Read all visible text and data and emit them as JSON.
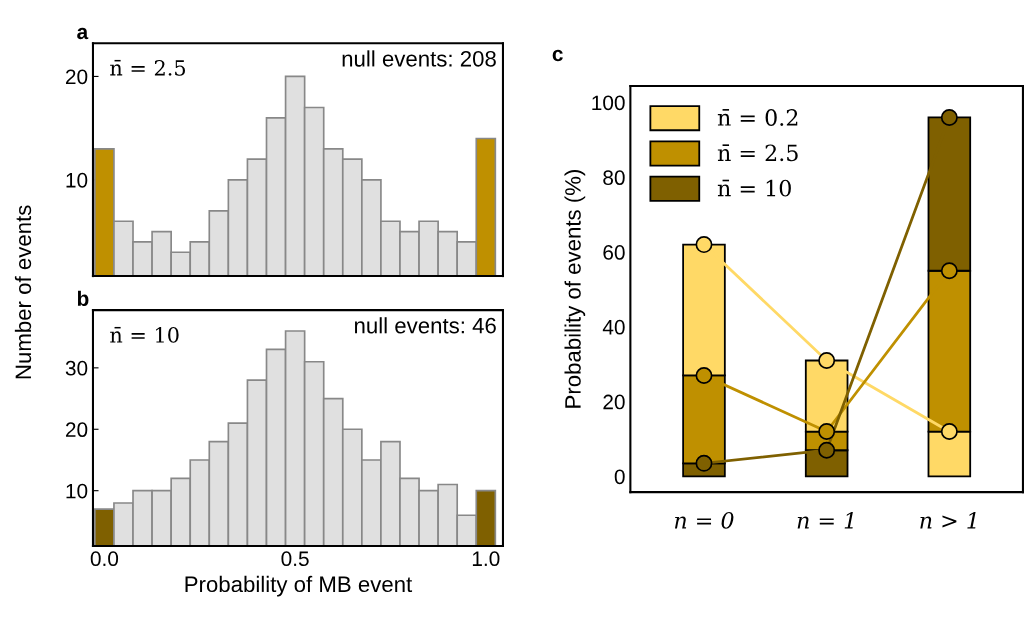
{
  "chart_data": [
    {
      "type": "histogram",
      "title": "a",
      "ylabel": "Number of events",
      "bins": [
        -0.025,
        0.025,
        0.075,
        0.125,
        0.175,
        0.225,
        0.275,
        0.325,
        0.375,
        0.425,
        0.475,
        0.525,
        0.575,
        0.625,
        0.675,
        0.725,
        0.775,
        0.825,
        0.875,
        0.925,
        0.975,
        1.025
      ],
      "values": [
        13,
        6,
        4,
        5,
        3,
        4,
        7,
        10,
        12,
        16,
        20,
        17,
        13,
        12,
        10,
        6,
        5,
        6,
        5,
        4,
        14
      ],
      "colors": [
        "#bf9000",
        "#e0e0e0",
        "#e0e0e0",
        "#e0e0e0",
        "#e0e0e0",
        "#e0e0e0",
        "#e0e0e0",
        "#e0e0e0",
        "#e0e0e0",
        "#e0e0e0",
        "#e0e0e0",
        "#e0e0e0",
        "#e0e0e0",
        "#e0e0e0",
        "#e0e0e0",
        "#e0e0e0",
        "#e0e0e0",
        "#e0e0e0",
        "#e0e0e0",
        "#e0e0e0",
        "#bf9000"
      ],
      "annotations": [
        "n̄ = 2.5",
        "null events: 208"
      ],
      "xlim": [
        -0.03,
        1.045
      ],
      "xticks": [
        {
          "value": 0,
          "label": null
        },
        {
          "value": 0.5,
          "label": null
        },
        {
          "value": 1,
          "label": null
        }
      ],
      "ylim": [
        0.7,
        23.2
      ],
      "yticks": [
        10,
        20
      ],
      "tick_labels": "y",
      "grid": false
    },
    {
      "type": "histogram",
      "title": "b",
      "xlabel": "Probability of MB event",
      "bins": [
        -0.025,
        0.025,
        0.075,
        0.125,
        0.175,
        0.225,
        0.275,
        0.325,
        0.375,
        0.425,
        0.475,
        0.525,
        0.575,
        0.625,
        0.675,
        0.725,
        0.775,
        0.825,
        0.875,
        0.925,
        0.975,
        1.025
      ],
      "values": [
        7,
        8,
        10,
        10,
        12,
        15,
        18,
        21,
        28,
        33,
        36,
        31,
        25,
        20,
        15,
        18,
        12,
        10,
        11,
        6,
        10
      ],
      "colors": [
        "#7f6000",
        "#e0e0e0",
        "#e0e0e0",
        "#e0e0e0",
        "#e0e0e0",
        "#e0e0e0",
        "#e0e0e0",
        "#e0e0e0",
        "#e0e0e0",
        "#e0e0e0",
        "#e0e0e0",
        "#e0e0e0",
        "#e0e0e0",
        "#e0e0e0",
        "#e0e0e0",
        "#e0e0e0",
        "#e0e0e0",
        "#e0e0e0",
        "#e0e0e0",
        "#e0e0e0",
        "#7f6000"
      ],
      "annotations": [
        "n̄ = 10",
        "null events: 46"
      ],
      "xlim": [
        -0.03,
        1.045
      ],
      "xticks": [
        {
          "value": 0,
          "label": "0.0"
        },
        {
          "value": 0.5,
          "label": "0.5"
        },
        {
          "value": 1,
          "label": "1.0"
        }
      ],
      "ylim": [
        1.0,
        39.4
      ],
      "yticks": [
        10,
        20,
        30
      ],
      "grid": false
    },
    {
      "type": "bar",
      "title": "c",
      "ylabel": "Probability of events (%)",
      "categories": [
        "n = 0",
        "n = 1",
        "n > 1"
      ],
      "series": [
        {
          "colors": [
            "#7f6000",
            "#7f6000",
            "#ffd966"
          ],
          "values": [
            3.5,
            7,
            12
          ]
        },
        {
          "colors": [
            "#bf9000",
            "#bf9000",
            "#bf9000"
          ],
          "values": [
            23.5,
            5,
            43
          ]
        },
        {
          "colors": [
            "#ffd966",
            "#ffd966",
            "#7f6000"
          ],
          "values": [
            35,
            19,
            41
          ]
        },
        {
          "type": "line",
          "name": "n̄ = 0.2",
          "color": "#ffd966",
          "values": [
            62,
            31,
            12
          ]
        },
        {
          "type": "line",
          "name": "n̄ = 2.5",
          "color": "#bf9000",
          "values": [
            27,
            12,
            55
          ]
        },
        {
          "type": "line",
          "name": "n̄ = 10",
          "color": "#7f6000",
          "values": [
            3.5,
            7,
            96
          ]
        }
      ],
      "stacked": true,
      "marker": "circle",
      "line_style": "solid",
      "ylim": [
        -4.2,
        104.4
      ],
      "yticks": [
        0,
        20,
        40,
        60,
        80,
        100
      ],
      "legend": "top left",
      "grid": false
    }
  ]
}
